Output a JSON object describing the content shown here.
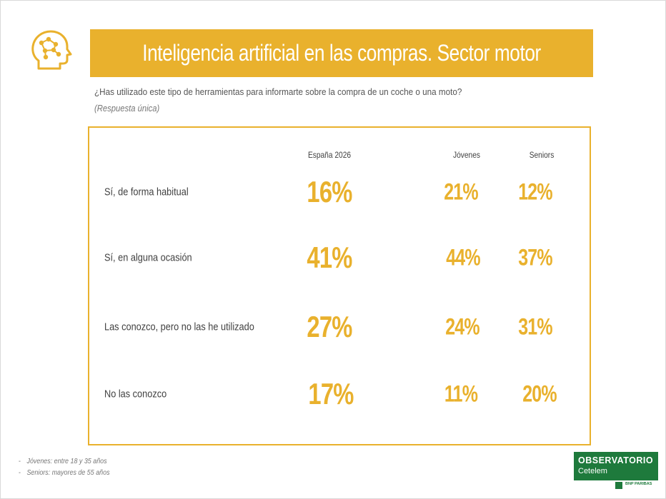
{
  "slide": {
    "title": "Inteligencia artificial en las compras. Sector motor",
    "question": "¿Has utilizado este tipo de herramientas para informarte sobre la compra de un coche o una moto?",
    "note": "(Respuesta única)"
  },
  "icon": "ai-brain-head-icon",
  "colors": {
    "accent": "#e9b12d",
    "brand_green": "#1e7a3c"
  },
  "chart_data": {
    "type": "table",
    "columns": [
      "España 2026",
      "Jóvenes",
      "Seniors"
    ],
    "rows": [
      {
        "label": "Sí, de forma habitual",
        "values": [
          "16%",
          "21%",
          "12%"
        ]
      },
      {
        "label": "Sí, en alguna ocasión",
        "values": [
          "41%",
          "44%",
          "37%"
        ]
      },
      {
        "label": "Las conozco, pero no las he utilizado",
        "values": [
          "27%",
          "24%",
          "31%"
        ]
      },
      {
        "label": "No las conozco",
        "values": [
          "17%",
          "11%",
          "20%"
        ]
      }
    ]
  },
  "footnotes": [
    {
      "dash": "-",
      "text": "Jóvenes: entre 18 y 35 años"
    },
    {
      "dash": "-",
      "text": "Seniors: mayores de 55 años"
    }
  ],
  "logo": {
    "name": "OBSERVATORIO",
    "sub": "Cetelem",
    "bank": "BNP PARIBAS"
  }
}
